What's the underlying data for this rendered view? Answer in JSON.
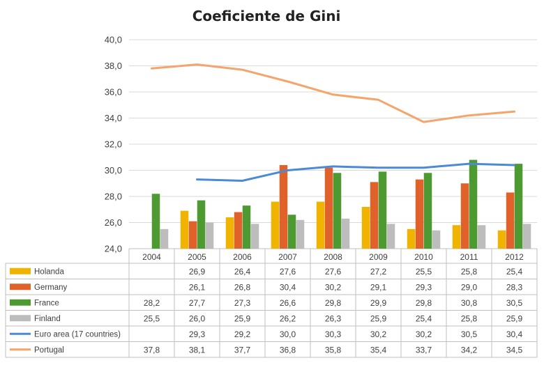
{
  "chart_data": {
    "type": "bar",
    "title": "Coeficiente de Gini",
    "categories": [
      "2004",
      "2005",
      "2006",
      "2007",
      "2008",
      "2009",
      "2010",
      "2011",
      "2012"
    ],
    "ylim": [
      24.0,
      40.0
    ],
    "y_ticks": [
      "24,0",
      "26,0",
      "28,0",
      "30,0",
      "32,0",
      "34,0",
      "36,0",
      "38,0",
      "40,0"
    ],
    "y_tick_step": 2,
    "grid": true,
    "legend": "data-table",
    "series": [
      {
        "name": "Holanda",
        "kind": "bar",
        "color": "#f0b400",
        "values": [
          null,
          26.9,
          26.4,
          27.6,
          27.6,
          27.2,
          25.5,
          25.8,
          25.4
        ],
        "labels": [
          "",
          "26,9",
          "26,4",
          "27,6",
          "27,6",
          "27,2",
          "25,5",
          "25,8",
          "25,4"
        ]
      },
      {
        "name": "Germany",
        "kind": "bar",
        "color": "#e0622a",
        "values": [
          null,
          26.1,
          26.8,
          30.4,
          30.2,
          29.1,
          29.3,
          29.0,
          28.3
        ],
        "labels": [
          "",
          "26,1",
          "26,8",
          "30,4",
          "30,2",
          "29,1",
          "29,3",
          "29,0",
          "28,3"
        ]
      },
      {
        "name": "France",
        "kind": "bar",
        "color": "#4e9a32",
        "values": [
          28.2,
          27.7,
          27.3,
          26.6,
          29.8,
          29.9,
          29.8,
          30.8,
          30.5
        ],
        "labels": [
          "28,2",
          "27,7",
          "27,3",
          "26,6",
          "29,8",
          "29,9",
          "29,8",
          "30,8",
          "30,5"
        ]
      },
      {
        "name": "Finland",
        "kind": "bar",
        "color": "#bdbdbd",
        "values": [
          25.5,
          26.0,
          25.9,
          26.2,
          26.3,
          25.9,
          25.4,
          25.8,
          25.9
        ],
        "labels": [
          "25,5",
          "26,0",
          "25,9",
          "26,2",
          "26,3",
          "25,9",
          "25,4",
          "25,8",
          "25,9"
        ]
      },
      {
        "name": "Euro area (17 countries)",
        "kind": "line",
        "color": "#4a8ad6",
        "values": [
          null,
          29.3,
          29.2,
          30.0,
          30.3,
          30.2,
          30.2,
          30.5,
          30.4
        ],
        "labels": [
          "",
          "29,3",
          "29,2",
          "30,0",
          "30,3",
          "30,2",
          "30,2",
          "30,5",
          "30,4"
        ]
      },
      {
        "name": "Portugal",
        "kind": "line",
        "color": "#f5a46c",
        "values": [
          37.8,
          38.1,
          37.7,
          36.8,
          35.8,
          35.4,
          33.7,
          34.2,
          34.5
        ],
        "labels": [
          "37,8",
          "38,1",
          "37,7",
          "36,8",
          "35,8",
          "35,4",
          "33,7",
          "34,2",
          "34,5"
        ]
      }
    ]
  }
}
